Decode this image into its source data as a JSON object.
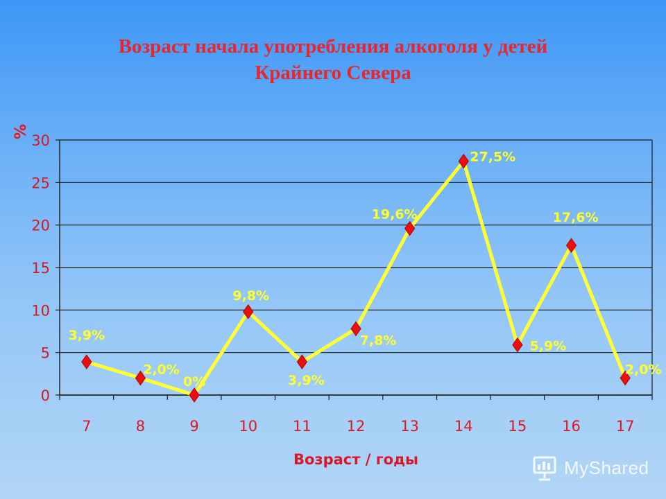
{
  "title": {
    "line1": "Возраст начала употребления алкоголя у детей",
    "line2": "Крайнего Севера"
  },
  "watermark": {
    "text": "MyShared",
    "icon": "presentation-icon"
  },
  "colors": {
    "line": "#ffff33",
    "marker": "#e81010",
    "labels": "#ffff2a",
    "axis_text": "#d51a22",
    "title": "#e8262b"
  },
  "chart_data": {
    "type": "line",
    "title": "Возраст начала употребления алкоголя у детей Крайнего Севера",
    "xlabel": "Возраст / годы",
    "ylabel": "%",
    "categories": [
      "7",
      "8",
      "9",
      "10",
      "11",
      "12",
      "13",
      "14",
      "15",
      "16",
      "17"
    ],
    "series": [
      {
        "values": [
          3.9,
          2.0,
          0,
          9.8,
          3.9,
          7.8,
          19.6,
          27.5,
          5.9,
          17.6,
          2.0
        ]
      }
    ],
    "data_labels": [
      "3,9%",
      "2,0%",
      "0%",
      "9,8%",
      "3,9%",
      "7,8%",
      "19,6%",
      "27,5%",
      "5,9%",
      "17,6%",
      "2,0%"
    ],
    "ylim": [
      0,
      30
    ],
    "yticks": [
      0,
      5,
      10,
      15,
      20,
      25,
      30
    ],
    "grid": true,
    "legend": "none",
    "marker": "diamond"
  }
}
